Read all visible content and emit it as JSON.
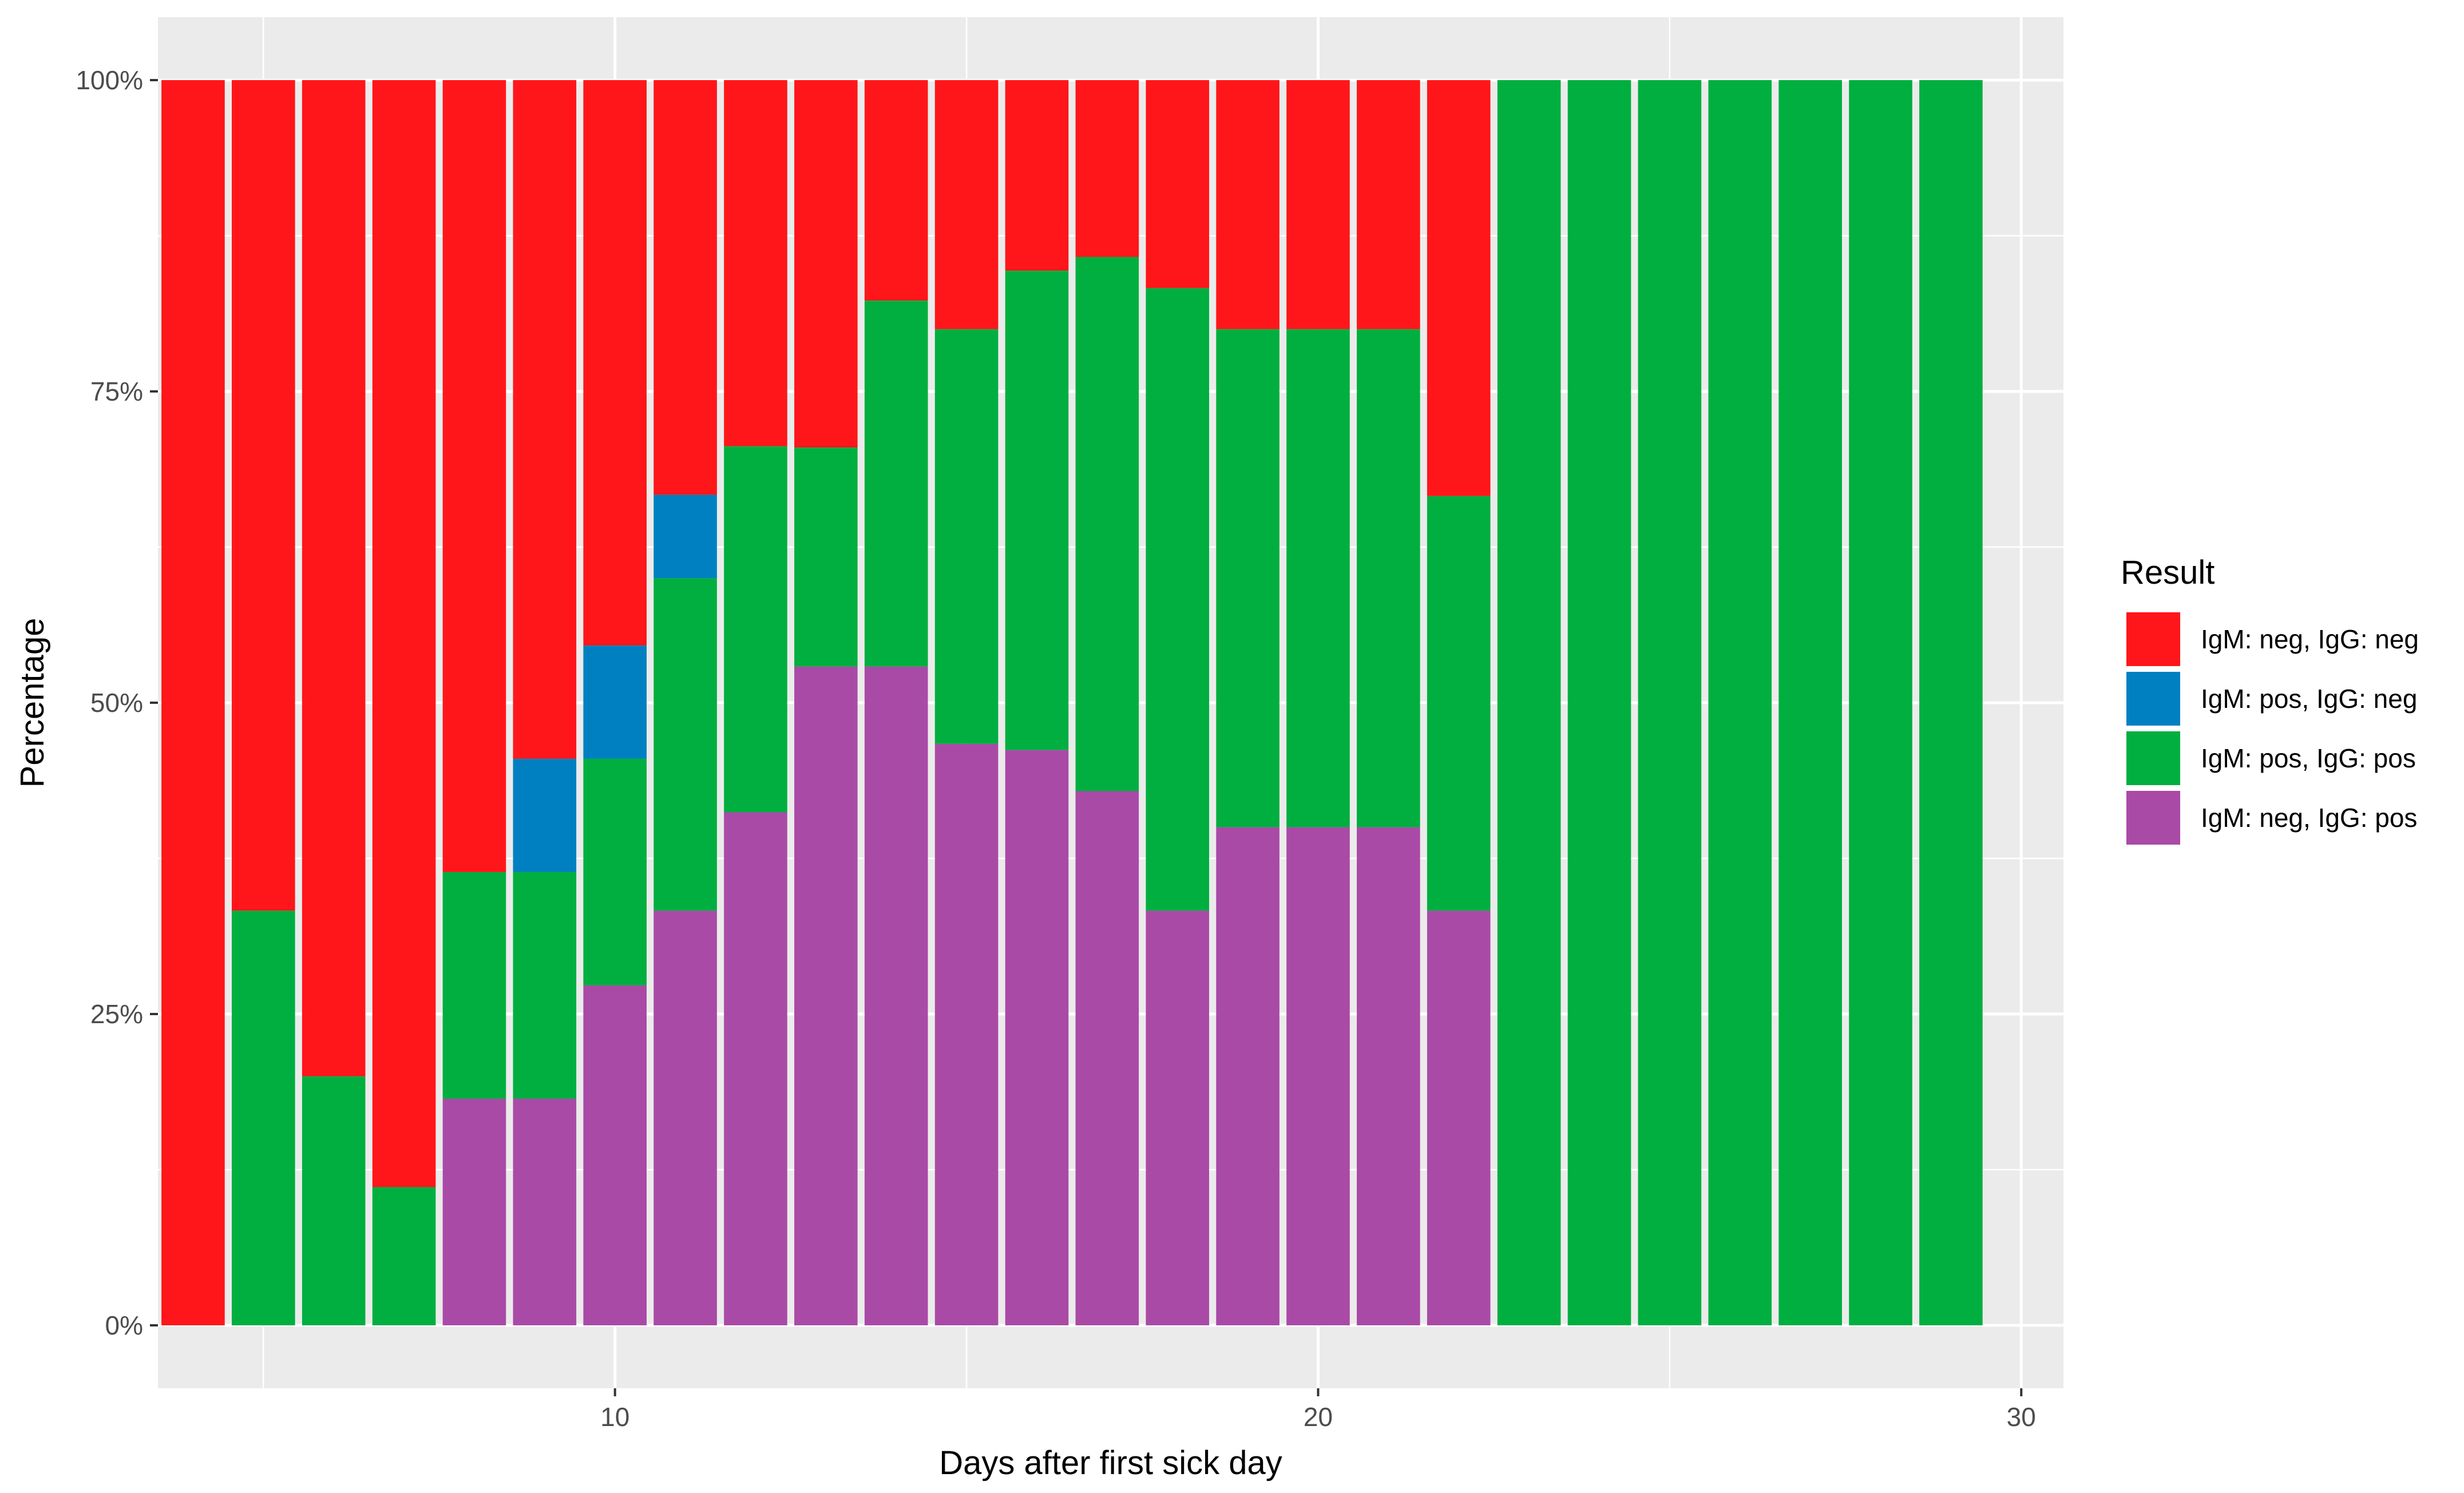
{
  "chart_data": {
    "type": "bar",
    "stacked": true,
    "normalized": true,
    "xlabel": "Days after first sick day",
    "ylabel": "Percentage",
    "xlim": [
      3.5,
      30.6
    ],
    "ylim": [
      0,
      1
    ],
    "x_ticks": [
      10,
      20,
      30
    ],
    "y_ticks": [
      0,
      0.25,
      0.5,
      0.75,
      1
    ],
    "y_tick_labels": [
      "0%",
      "25%",
      "50%",
      "75%",
      "100%"
    ],
    "grid": true,
    "legend": {
      "title": "Result",
      "position": "right",
      "entries": [
        "IgM: neg, IgG: neg",
        "IgM: pos, IgG: neg",
        "IgM: pos, IgG: pos",
        "IgM: neg, IgG: pos"
      ]
    },
    "x": [
      4,
      5,
      6,
      7,
      8,
      9,
      10,
      11,
      12,
      13,
      14,
      15,
      16,
      17,
      18,
      19,
      20,
      21,
      22,
      23,
      24,
      25,
      26,
      27,
      28,
      29
    ],
    "series": [
      {
        "name": "IgM: neg, IgG: pos",
        "color": "#AA4AA7",
        "values": [
          0,
          0,
          0,
          0,
          0.182,
          0.182,
          0.273,
          0.333,
          0.412,
          0.529,
          0.529,
          0.467,
          0.462,
          0.429,
          0.333,
          0.4,
          0.4,
          0.4,
          0.333,
          0,
          0,
          0,
          0,
          0,
          0,
          0
        ]
      },
      {
        "name": "IgM: pos, IgG: pos",
        "color": "#00AF3F",
        "values": [
          0,
          0.333,
          0.2,
          0.111,
          0.182,
          0.182,
          0.182,
          0.267,
          0.294,
          0.176,
          0.294,
          0.333,
          0.385,
          0.429,
          0.5,
          0.4,
          0.4,
          0.4,
          0.333,
          1,
          1,
          1,
          1,
          1,
          1,
          1
        ]
      },
      {
        "name": "IgM: pos, IgG: neg",
        "color": "#0080C0",
        "values": [
          0,
          0,
          0,
          0,
          0,
          0.091,
          0.091,
          0.067,
          0,
          0,
          0,
          0,
          0,
          0,
          0,
          0,
          0,
          0,
          0,
          0,
          0,
          0,
          0,
          0,
          0,
          0
        ]
      },
      {
        "name": "IgM: neg, IgG: neg",
        "color": "#FF161A",
        "values": [
          1,
          0.667,
          0.8,
          0.889,
          0.636,
          0.545,
          0.454,
          0.333,
          0.294,
          0.295,
          0.177,
          0.2,
          0.153,
          0.142,
          0.167,
          0.2,
          0.2,
          0.2,
          0.334,
          0,
          0,
          0,
          0,
          0,
          0,
          0
        ]
      }
    ]
  }
}
